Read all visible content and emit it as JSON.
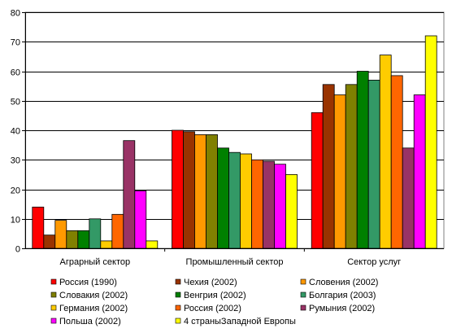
{
  "chart_data": {
    "type": "bar",
    "title": "",
    "xlabel": "",
    "ylabel": "",
    "ylim": [
      0,
      80
    ],
    "yticks": [
      0,
      10,
      20,
      30,
      40,
      50,
      60,
      70,
      80
    ],
    "grid": true,
    "legend_position": "bottom",
    "categories": [
      "Аграрный сектор",
      "Промышленный сектор",
      "Сектор услуг"
    ],
    "series": [
      {
        "name": "Россия (1990)",
        "color": "#ff0000",
        "values": [
          14,
          40,
          46
        ]
      },
      {
        "name": "Чехия (2002)",
        "color": "#993300",
        "values": [
          4.5,
          39.5,
          55.5
        ]
      },
      {
        "name": "Словения (2002)",
        "color": "#ff9900",
        "values": [
          9.5,
          38.5,
          52
        ]
      },
      {
        "name": "Словакия (2002)",
        "color": "#808000",
        "values": [
          6,
          38.5,
          55.5
        ]
      },
      {
        "name": "Венгрия (2002)",
        "color": "#008000",
        "values": [
          6,
          34,
          60
        ]
      },
      {
        "name": "Болгария (2003)",
        "color": "#339966",
        "values": [
          10,
          32.5,
          57
        ]
      },
      {
        "name": "Германия (2002)",
        "color": "#ffcc00",
        "values": [
          2.5,
          32,
          65.5
        ]
      },
      {
        "name": "Россия (2002)",
        "color": "#ff6600",
        "values": [
          11.5,
          30,
          58.5
        ]
      },
      {
        "name": "Румыния (2002)",
        "color": "#993366",
        "values": [
          36.5,
          29.5,
          34
        ]
      },
      {
        "name": "Польша (2002)",
        "color": "#ff00ff",
        "values": [
          19.5,
          28.5,
          52
        ]
      },
      {
        "name": "4 страныЗападной Европы",
        "color": "#ffff00",
        "values": [
          2.5,
          25,
          72
        ]
      }
    ]
  }
}
